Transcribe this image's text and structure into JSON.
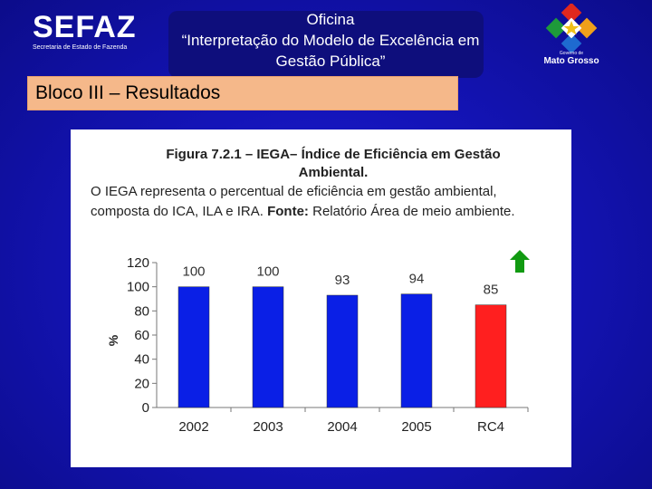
{
  "header": {
    "logo_left": {
      "word": "SEFAZ",
      "subtitle": "Secretaria de Estado de Fazenda"
    },
    "title_lines": [
      "Oficina",
      "“Interpretação do Modelo de Excelência  em",
      "Gestão Pública”"
    ],
    "logo_right": {
      "line1": "Governo de",
      "line2": "Mato Grosso"
    }
  },
  "section": {
    "label": "Bloco III –  Resultados"
  },
  "figure": {
    "title_lines": [
      "Figura 7.2.1 – IEGA– Índice de Eficiência em Gestão",
      "Ambiental."
    ],
    "description_plain": "O IEGA representa o percentual de eficiência em gestão ambiental, composta do ICA, ILA e IRA. ",
    "source_label": "Fonte:",
    "source_text": " Relatório Área de meio ambiente."
  },
  "colors": {
    "background": "#1616c0",
    "title_box": "#0e0e7c",
    "section_bar": "#f5b88a",
    "bar_blue": "#0a1fe6",
    "bar_red": "#ff1f1f",
    "arrow_green": "#119a11"
  },
  "chart_data": {
    "type": "bar",
    "categories": [
      "2002",
      "2003",
      "2004",
      "2005",
      "RC4"
    ],
    "values": [
      100,
      100,
      93,
      94,
      85
    ],
    "data_labels": [
      "100",
      "100",
      "93",
      "94",
      "85"
    ],
    "bar_colors": [
      "#0a1fe6",
      "#0a1fe6",
      "#0a1fe6",
      "#0a1fe6",
      "#ff1f1f"
    ],
    "ylabel": "%",
    "ylim": [
      0,
      120
    ],
    "yticks": [
      "0",
      "20",
      "40",
      "60",
      "80",
      "100",
      "120"
    ],
    "grid": false,
    "indicator": "up-arrow-icon"
  }
}
